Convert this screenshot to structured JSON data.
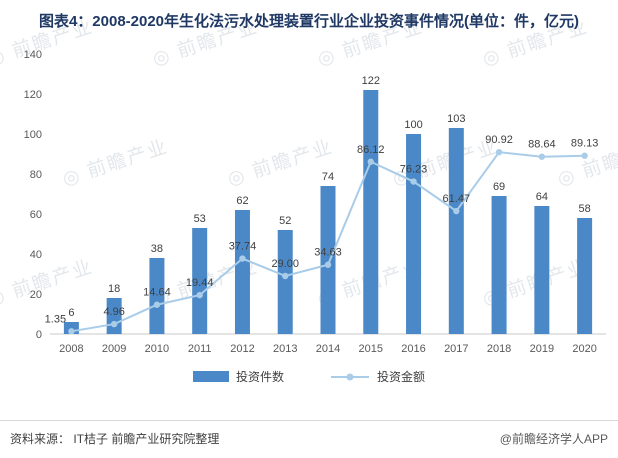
{
  "page": {
    "watermark_text": "前瞻产业"
  },
  "title": "图表4：2008-2020年生化法污水处理装置行业企业投资事件情况(单位：件，亿元)",
  "footer": {
    "source_prefix": "资料来源：",
    "source": "IT桔子 前瞻产业研究院整理",
    "credit": "@前瞻经济学人APP"
  },
  "chart_data": {
    "type": "bar",
    "categories": [
      "2008",
      "2009",
      "2010",
      "2011",
      "2012",
      "2013",
      "2014",
      "2015",
      "2016",
      "2017",
      "2018",
      "2019",
      "2020"
    ],
    "series": [
      {
        "name": "投资件数",
        "type": "bar",
        "color": "#4B88C7",
        "values": [
          6,
          18,
          38,
          53,
          62,
          52,
          74,
          122,
          100,
          103,
          69,
          64,
          58
        ]
      },
      {
        "name": "投资金额",
        "type": "line",
        "color": "#A9CCE9",
        "values": [
          1.35,
          4.96,
          14.64,
          19.44,
          37.74,
          29.0,
          34.63,
          86.12,
          76.23,
          61.47,
          90.92,
          88.64,
          89.13
        ],
        "labels": [
          "1.35",
          "4.96",
          "14.64",
          "19.44",
          "37.74",
          "29.00",
          "34.63",
          "86.12",
          "76.23",
          "61.47",
          "90.92",
          "88.64",
          "89.13"
        ]
      }
    ],
    "ylim": [
      0,
      140
    ],
    "ytick_step": 20,
    "grid": false,
    "legend_position": "bottom",
    "xlabel": "",
    "ylabel": ""
  }
}
